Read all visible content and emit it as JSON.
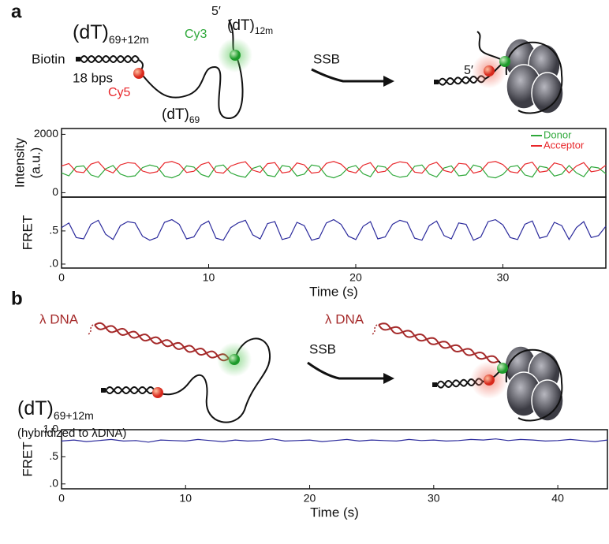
{
  "diagram": {
    "panel_a": "a",
    "panel_b": "b",
    "a_construct": {
      "base": "(dT)",
      "sub": "69+12m"
    },
    "a_biotin": "Biotin",
    "a_bps": "18 bps",
    "a_cy5": "Cy5",
    "a_cy3": "Cy3",
    "a_five_prime": "5′",
    "a_dt12": {
      "base": "(dT)",
      "sub": "12m"
    },
    "a_dt69": {
      "base": "(dT)",
      "sub": "69"
    },
    "a_ssb": "SSB",
    "a_five_prime_bound": "5′",
    "b_lambda": "λ DNA",
    "b_construct": {
      "base": "(dT)",
      "sub": "69+12m"
    },
    "b_hybridized": "(hybridized to λDNA)",
    "b_ssb": "SSB",
    "b_lambda_bound": "λ DNA"
  },
  "chart_data": [
    {
      "type": "line",
      "y_label": [
        "Intensity",
        "(a.u.)"
      ],
      "xlim": [
        0,
        37
      ],
      "ylim": [
        -150,
        2200
      ],
      "yticks": [
        0,
        2000
      ],
      "legend": "upper right",
      "x": [
        0,
        0.5,
        1,
        1.5,
        2,
        2.5,
        3,
        3.5,
        4,
        4.5,
        5,
        5.5,
        6,
        6.5,
        7,
        7.5,
        8,
        8.5,
        9,
        9.5,
        10,
        10.5,
        11,
        11.5,
        12,
        12.5,
        13,
        13.5,
        14,
        14.5,
        15,
        15.5,
        16,
        16.5,
        17,
        17.5,
        18,
        18.5,
        19,
        19.5,
        20,
        20.5,
        21,
        21.5,
        22,
        22.5,
        23,
        23.5,
        24,
        24.5,
        25,
        25.5,
        26,
        26.5,
        27,
        27.5,
        28,
        28.5,
        29,
        29.5,
        30,
        30.5,
        31,
        31.5,
        32,
        32.5,
        33,
        33.5,
        34,
        34.5,
        35,
        35.5,
        36,
        36.5,
        37
      ],
      "series": [
        {
          "name": "Donor",
          "color": "#2ea83a",
          "values": [
            680,
            580,
            890,
            920,
            610,
            530,
            820,
            930,
            640,
            550,
            580,
            860,
            950,
            890,
            570,
            510,
            610,
            920,
            880,
            625,
            540,
            905,
            950,
            680,
            580,
            530,
            835,
            920,
            595,
            550,
            930,
            890,
            570,
            640,
            950,
            905,
            580,
            510,
            610,
            860,
            930,
            650,
            550,
            920,
            880,
            610,
            530,
            570,
            905,
            950,
            640,
            540,
            850,
            920,
            580,
            610,
            950,
            880,
            550,
            510,
            625,
            890,
            930,
            610,
            540,
            905,
            860,
            570,
            640,
            930,
            680,
            550,
            890,
            850,
            650
          ]
        },
        {
          "name": "Acceptor",
          "color": "#e8262a",
          "values": [
            915,
            1000,
            720,
            690,
            980,
            1060,
            785,
            680,
            955,
            1030,
            1005,
            745,
            670,
            720,
            1020,
            1070,
            980,
            695,
            735,
            965,
            1045,
            705,
            670,
            915,
            1005,
            1060,
            770,
            695,
            995,
            1030,
            680,
            720,
            1020,
            955,
            670,
            705,
            1005,
            1070,
            980,
            745,
            680,
            940,
            1030,
            695,
            735,
            980,
            1060,
            1020,
            705,
            670,
            955,
            1045,
            760,
            695,
            1005,
            980,
            670,
            735,
            1030,
            1070,
            965,
            720,
            680,
            980,
            1045,
            705,
            745,
            1020,
            955,
            680,
            915,
            1030,
            720,
            760,
            940
          ]
        }
      ]
    },
    {
      "type": "line",
      "y_label": "FRET",
      "x_label": "Time (s)",
      "xlim": [
        0,
        37
      ],
      "ylim": [
        -0.06,
        1.01
      ],
      "xticks": [
        0,
        10,
        20,
        30
      ],
      "yticks": [
        {
          "value": 0,
          "label": ".0"
        },
        {
          "value": 0.5,
          "label": ".5"
        }
      ],
      "x": [
        0,
        0.5,
        1,
        1.5,
        2,
        2.5,
        3,
        3.5,
        4,
        4.5,
        5,
        5.5,
        6,
        6.5,
        7,
        7.5,
        8,
        8.5,
        9,
        9.5,
        10,
        10.5,
        11,
        11.5,
        12,
        12.5,
        13,
        13.5,
        14,
        14.5,
        15,
        15.5,
        16,
        16.5,
        17,
        17.5,
        18,
        18.5,
        19,
        19.5,
        20,
        20.5,
        21,
        21.5,
        22,
        22.5,
        23,
        23.5,
        24,
        24.5,
        25,
        25.5,
        26,
        26.5,
        27,
        27.5,
        28,
        28.5,
        29,
        29.5,
        30,
        30.5,
        31,
        31.5,
        32,
        32.5,
        33,
        33.5,
        34,
        34.5,
        35,
        35.5,
        36,
        36.5,
        37
      ],
      "series": [
        {
          "color": "#2b2a9c",
          "values": [
            0.55,
            0.62,
            0.4,
            0.38,
            0.6,
            0.66,
            0.45,
            0.37,
            0.58,
            0.64,
            0.62,
            0.42,
            0.36,
            0.4,
            0.63,
            0.67,
            0.6,
            0.38,
            0.41,
            0.59,
            0.65,
            0.39,
            0.36,
            0.55,
            0.62,
            0.66,
            0.44,
            0.38,
            0.61,
            0.64,
            0.37,
            0.4,
            0.63,
            0.58,
            0.36,
            0.39,
            0.62,
            0.67,
            0.6,
            0.42,
            0.37,
            0.57,
            0.64,
            0.38,
            0.41,
            0.6,
            0.66,
            0.63,
            0.39,
            0.36,
            0.58,
            0.65,
            0.43,
            0.38,
            0.62,
            0.6,
            0.36,
            0.41,
            0.64,
            0.67,
            0.59,
            0.4,
            0.37,
            0.6,
            0.65,
            0.39,
            0.42,
            0.63,
            0.58,
            0.37,
            0.55,
            0.64,
            0.4,
            0.43,
            0.57
          ]
        }
      ]
    },
    {
      "type": "line",
      "y_label": "FRET",
      "x_label": "Time (s)",
      "xlim": [
        0,
        44
      ],
      "ylim": [
        -0.09,
        1.0
      ],
      "xticks": [
        0,
        10,
        20,
        30,
        40
      ],
      "yticks": [
        {
          "value": 0,
          "label": ".0"
        },
        {
          "value": 0.5,
          "label": ".5"
        },
        {
          "value": 1,
          "label": "1.0"
        }
      ],
      "x": [
        0,
        1,
        2,
        3,
        4,
        5,
        6,
        7,
        8,
        9,
        10,
        11,
        12,
        13,
        14,
        15,
        16,
        17,
        18,
        19,
        20,
        21,
        22,
        23,
        24,
        25,
        26,
        27,
        28,
        29,
        30,
        31,
        32,
        33,
        34,
        35,
        36,
        37,
        38,
        39,
        40,
        41,
        42,
        43,
        44
      ],
      "series": [
        {
          "color": "#2b2a9c",
          "values": [
            0.79,
            0.81,
            0.78,
            0.8,
            0.82,
            0.79,
            0.8,
            0.77,
            0.81,
            0.8,
            0.79,
            0.82,
            0.8,
            0.78,
            0.81,
            0.79,
            0.8,
            0.83,
            0.79,
            0.8,
            0.81,
            0.78,
            0.8,
            0.82,
            0.79,
            0.81,
            0.8,
            0.79,
            0.82,
            0.8,
            0.81,
            0.79,
            0.8,
            0.82,
            0.81,
            0.83,
            0.8,
            0.82,
            0.81,
            0.79,
            0.8,
            0.82,
            0.8,
            0.78,
            0.81
          ]
        }
      ]
    }
  ]
}
